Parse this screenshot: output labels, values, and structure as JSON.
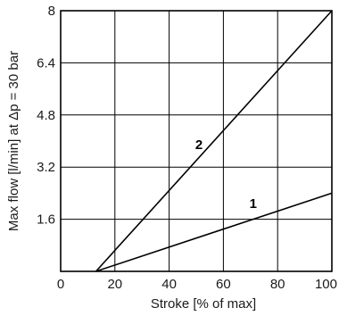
{
  "chart_data": {
    "type": "line",
    "xlabel": "Stroke [% of max]",
    "ylabel": "Max flow [l/min] at Δp = 30 bar",
    "xlim": [
      0,
      100
    ],
    "ylim": [
      0,
      8
    ],
    "x_ticks": [
      0,
      20,
      40,
      60,
      80,
      100
    ],
    "y_ticks": [
      1.6,
      3.2,
      4.8,
      6.4,
      8
    ],
    "x_tick_labels": [
      "0",
      "20",
      "40",
      "60",
      "80",
      "100"
    ],
    "y_tick_labels": [
      "1.6",
      "3.2",
      "4.8",
      "6.4",
      "8"
    ],
    "grid": true,
    "series": [
      {
        "label": "1",
        "x": [
          13,
          100
        ],
        "y": [
          0,
          2.4
        ],
        "label_at": [
          71,
          1.95
        ]
      },
      {
        "label": "2",
        "x": [
          13,
          100
        ],
        "y": [
          0,
          8.0
        ],
        "label_at": [
          51,
          3.75
        ]
      }
    ]
  }
}
